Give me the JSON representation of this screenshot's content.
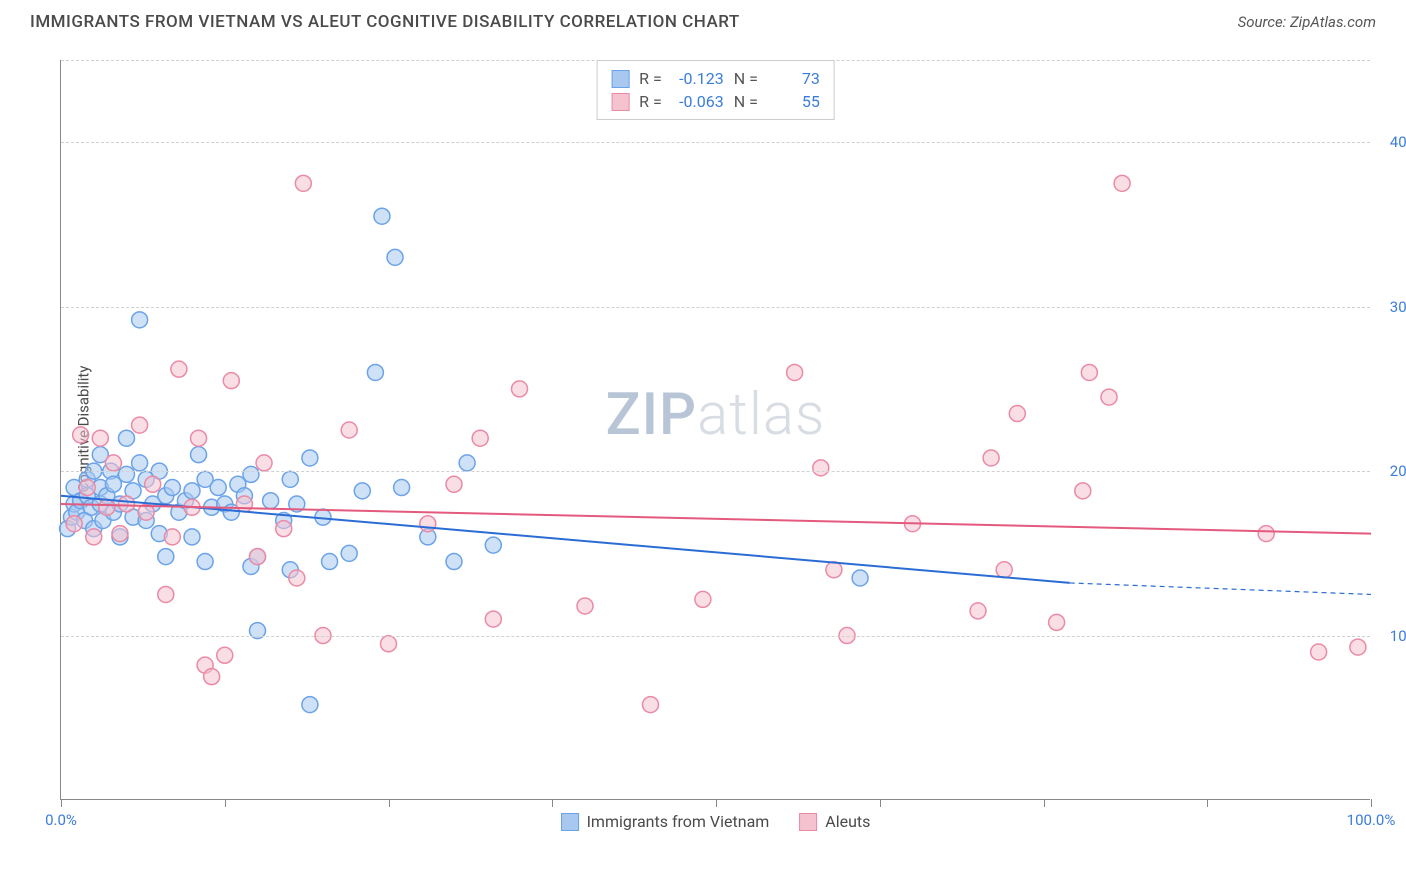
{
  "title": "IMMIGRANTS FROM VIETNAM VS ALEUT COGNITIVE DISABILITY CORRELATION CHART",
  "source_label": "Source: ZipAtlas.com",
  "watermark": {
    "part1": "ZIP",
    "part2": "atlas"
  },
  "y_axis_label": "Cognitive Disability",
  "chart": {
    "type": "scatter",
    "xlim": [
      0,
      100
    ],
    "ylim": [
      0,
      45
    ],
    "x_ticks": [
      0,
      12.5,
      25,
      37.5,
      50,
      62.5,
      75,
      87.5,
      100
    ],
    "x_tick_labels": {
      "0": "0.0%",
      "100": "100.0%"
    },
    "y_gridlines": [
      10,
      20,
      30,
      40,
      45
    ],
    "y_tick_labels": {
      "10": "10.0%",
      "20": "20.0%",
      "30": "30.0%",
      "40": "40.0%"
    },
    "background_color": "#ffffff",
    "grid_color": "#d0d0d0",
    "grid_dash": true,
    "marker_radius": 8,
    "marker_opacity": 0.55,
    "series": [
      {
        "name": "Immigrants from Vietnam",
        "color_fill": "#a8c8f0",
        "color_stroke": "#6ba3e8",
        "R": "-0.123",
        "N": "73",
        "trend": {
          "x1": 0,
          "y1": 18.5,
          "x2": 77,
          "y2": 13.2,
          "x2_dash": 100,
          "y2_dash": 12.5,
          "color": "#2b6cd4",
          "width": 2
        },
        "points": [
          [
            0.5,
            16.5
          ],
          [
            0.8,
            17.2
          ],
          [
            1,
            18
          ],
          [
            1,
            19
          ],
          [
            1.2,
            17.5
          ],
          [
            1.5,
            18.2
          ],
          [
            1.8,
            17
          ],
          [
            2,
            18.5
          ],
          [
            2,
            19.5
          ],
          [
            2.3,
            17.8
          ],
          [
            2.5,
            20
          ],
          [
            2.5,
            16.5
          ],
          [
            3,
            18
          ],
          [
            3,
            19
          ],
          [
            3,
            21
          ],
          [
            3.2,
            17
          ],
          [
            3.5,
            18.5
          ],
          [
            3.8,
            20
          ],
          [
            4,
            17.5
          ],
          [
            4,
            19.2
          ],
          [
            4.5,
            18
          ],
          [
            4.5,
            16
          ],
          [
            5,
            19.8
          ],
          [
            5,
            22
          ],
          [
            5.5,
            17.2
          ],
          [
            5.5,
            18.8
          ],
          [
            6,
            20.5
          ],
          [
            6,
            29.2
          ],
          [
            6.5,
            17
          ],
          [
            6.5,
            19.5
          ],
          [
            7,
            18
          ],
          [
            7.5,
            20
          ],
          [
            7.5,
            16.2
          ],
          [
            8,
            14.8
          ],
          [
            8,
            18.5
          ],
          [
            8.5,
            19
          ],
          [
            9,
            17.5
          ],
          [
            9.5,
            18.2
          ],
          [
            10,
            18.8
          ],
          [
            10,
            16
          ],
          [
            10.5,
            21
          ],
          [
            11,
            19.5
          ],
          [
            11,
            14.5
          ],
          [
            11.5,
            17.8
          ],
          [
            12,
            19
          ],
          [
            12.5,
            18
          ],
          [
            13,
            17.5
          ],
          [
            13.5,
            19.2
          ],
          [
            14,
            18.5
          ],
          [
            14.5,
            14.2
          ],
          [
            14.5,
            19.8
          ],
          [
            15,
            10.3
          ],
          [
            15,
            14.8
          ],
          [
            16,
            18.2
          ],
          [
            17,
            17
          ],
          [
            17.5,
            14
          ],
          [
            17.5,
            19.5
          ],
          [
            18,
            18
          ],
          [
            19,
            20.8
          ],
          [
            19,
            5.8
          ],
          [
            20,
            17.2
          ],
          [
            20.5,
            14.5
          ],
          [
            22,
            15
          ],
          [
            23,
            18.8
          ],
          [
            24,
            26
          ],
          [
            24.5,
            35.5
          ],
          [
            25.5,
            33
          ],
          [
            26,
            19
          ],
          [
            28,
            16
          ],
          [
            30,
            14.5
          ],
          [
            31,
            20.5
          ],
          [
            33,
            15.5
          ],
          [
            61,
            13.5
          ]
        ]
      },
      {
        "name": "Aleuts",
        "color_fill": "#f5c2cf",
        "color_stroke": "#eb8aa5",
        "R": "-0.063",
        "N": "55",
        "trend": {
          "x1": 0,
          "y1": 18,
          "x2": 100,
          "y2": 16.2,
          "color": "#e35a7e",
          "width": 2
        },
        "points": [
          [
            1,
            16.8
          ],
          [
            1.5,
            22.2
          ],
          [
            2,
            19
          ],
          [
            2.5,
            16
          ],
          [
            3,
            22
          ],
          [
            3.5,
            17.8
          ],
          [
            4,
            20.5
          ],
          [
            4.5,
            16.2
          ],
          [
            5,
            18
          ],
          [
            6,
            22.8
          ],
          [
            6.5,
            17.5
          ],
          [
            7,
            19.2
          ],
          [
            8,
            12.5
          ],
          [
            8.5,
            16
          ],
          [
            9,
            26.2
          ],
          [
            10,
            17.8
          ],
          [
            10.5,
            22
          ],
          [
            11,
            8.2
          ],
          [
            11.5,
            7.5
          ],
          [
            12.5,
            8.8
          ],
          [
            13,
            25.5
          ],
          [
            14,
            18
          ],
          [
            15,
            14.8
          ],
          [
            15.5,
            20.5
          ],
          [
            17,
            16.5
          ],
          [
            18,
            13.5
          ],
          [
            18.5,
            37.5
          ],
          [
            20,
            10
          ],
          [
            22,
            22.5
          ],
          [
            25,
            9.5
          ],
          [
            28,
            16.8
          ],
          [
            30,
            19.2
          ],
          [
            32,
            22
          ],
          [
            33,
            11
          ],
          [
            35,
            25
          ],
          [
            40,
            11.8
          ],
          [
            45,
            5.8
          ],
          [
            49,
            12.2
          ],
          [
            56,
            26
          ],
          [
            58,
            20.2
          ],
          [
            59,
            14
          ],
          [
            60,
            10
          ],
          [
            65,
            16.8
          ],
          [
            70,
            11.5
          ],
          [
            71,
            20.8
          ],
          [
            72,
            14
          ],
          [
            73,
            23.5
          ],
          [
            76,
            10.8
          ],
          [
            78,
            18.8
          ],
          [
            78.5,
            26
          ],
          [
            80,
            24.5
          ],
          [
            81,
            37.5
          ],
          [
            92,
            16.2
          ],
          [
            96,
            9
          ],
          [
            99,
            9.3
          ]
        ]
      }
    ]
  },
  "legend_top": {
    "r_label": "R =",
    "n_label": "N ="
  },
  "legend_bottom": [
    {
      "label": "Immigrants from Vietnam",
      "fill": "#a8c8f0",
      "stroke": "#6ba3e8"
    },
    {
      "label": "Aleuts",
      "fill": "#f5c2cf",
      "stroke": "#eb8aa5"
    }
  ]
}
